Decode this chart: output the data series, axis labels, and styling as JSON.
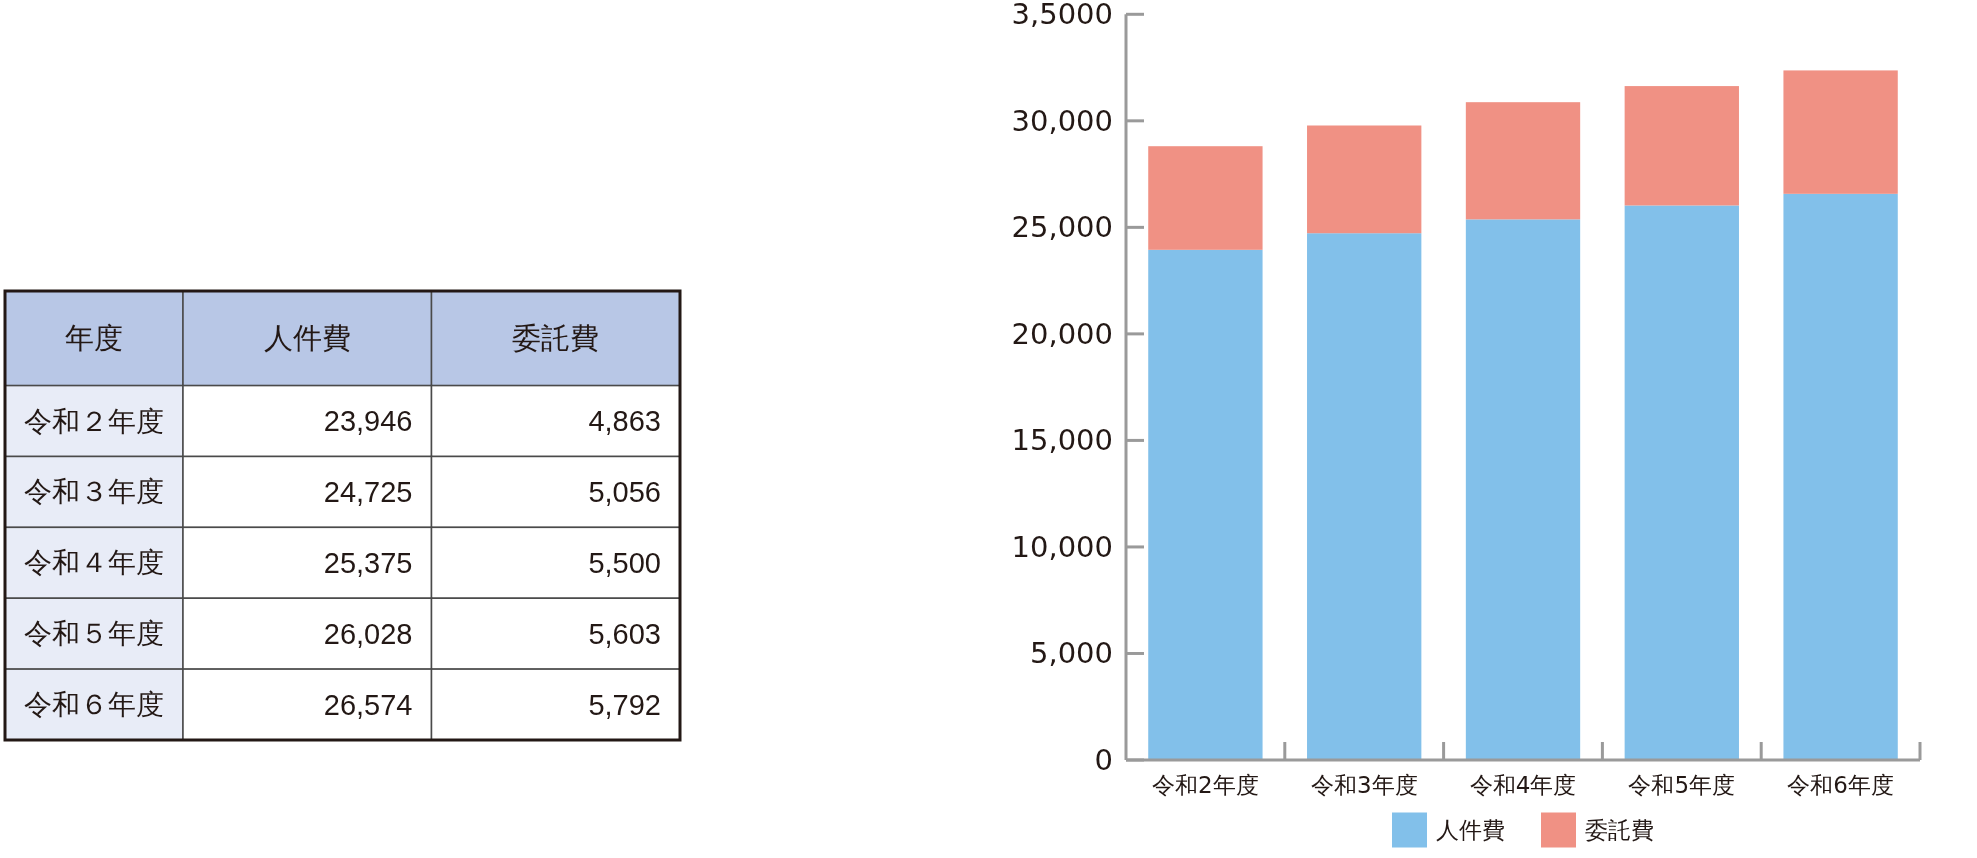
{
  "chart_data": [
    {
      "type": "heatmap",
      "ylabel": "年度",
      "categories": [
        "人件費",
        "委託費"
      ],
      "y_categories": [
        "令和２年度",
        "令和３年度",
        "令和４年度",
        "令和５年度",
        "令和６年度"
      ],
      "cells": [
        [
          23946,
          4863
        ],
        [
          24725,
          5056
        ],
        [
          25375,
          5500
        ],
        [
          26028,
          5603
        ],
        [
          26574,
          5792
        ]
      ],
      "cell_labels": [
        [
          "23,946",
          "4,863"
        ],
        [
          "24,725",
          "5,056"
        ],
        [
          "25,375",
          "5,500"
        ],
        [
          "26,028",
          "5,603"
        ],
        [
          "26,574",
          "5,792"
        ]
      ]
    },
    {
      "type": "bar",
      "stacked": true,
      "categories": [
        "令和2年度",
        "令和3年度",
        "令和4年度",
        "令和5年度",
        "令和6年度"
      ],
      "series": [
        {
          "name": "人件費",
          "color": "#82c0ea",
          "values": [
            23946,
            24725,
            25375,
            26028,
            26574
          ]
        },
        {
          "name": "委託費",
          "color": "#f09184",
          "values": [
            4863,
            5056,
            5500,
            5603,
            5792
          ]
        }
      ],
      "ylim": [
        0,
        35000
      ],
      "yticks": [
        0,
        {
          "value": 5000,
          "label": "5,000"
        },
        {
          "value": 10000,
          "label": "10,000"
        },
        {
          "value": 15000,
          "label": "15,000"
        },
        {
          "value": 20000,
          "label": "20,000"
        },
        {
          "value": 25000,
          "label": "25,000"
        },
        {
          "value": 30000,
          "label": "30,000"
        },
        {
          "value": 35000,
          "label": "3,5000"
        }
      ],
      "legend": "bottom"
    }
  ]
}
